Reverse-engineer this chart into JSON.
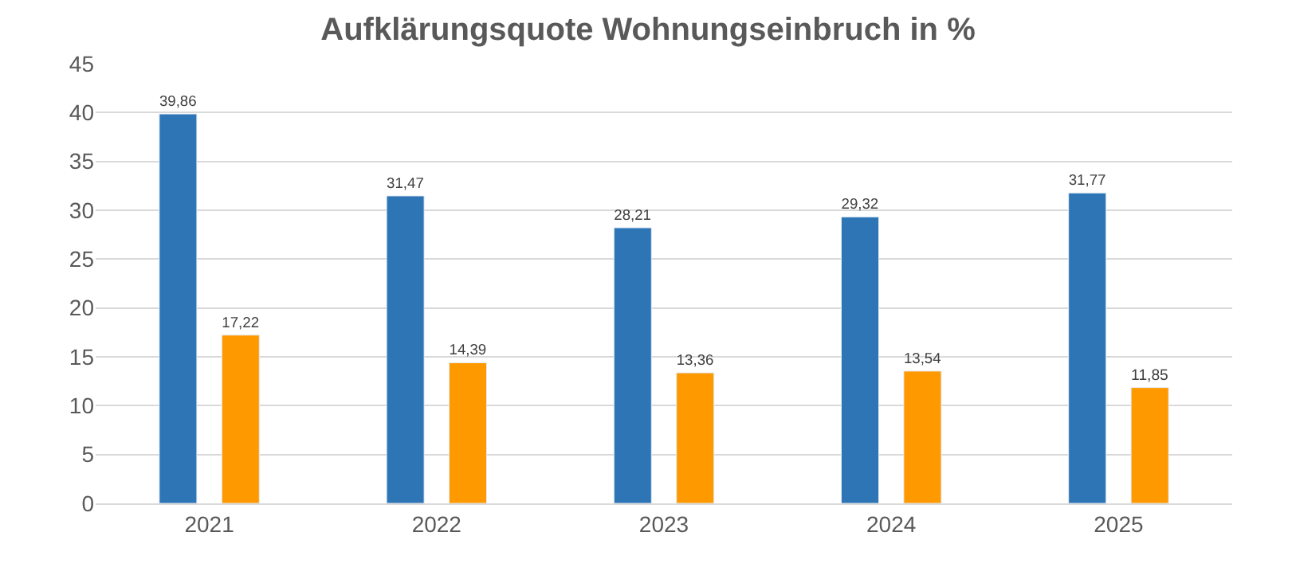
{
  "chart_data": {
    "type": "bar",
    "title": "Aufklärungsquote Wohnungseinbruch in %",
    "categories": [
      "2021",
      "2022",
      "2023",
      "2024",
      "2025"
    ],
    "series": [
      {
        "color": "#2e75b6",
        "values": [
          39.86,
          31.47,
          28.21,
          29.32,
          31.77
        ],
        "value_labels": [
          "39,86",
          "31,47",
          "28,21",
          "29,32",
          "31,77"
        ]
      },
      {
        "color": "#ff9900",
        "values": [
          17.22,
          14.39,
          13.36,
          13.54,
          11.85
        ],
        "value_labels": [
          "17,22",
          "14,39",
          "13,36",
          "13,54",
          "11,85"
        ]
      }
    ],
    "ylim": [
      0,
      45
    ],
    "yticks": [
      0,
      5,
      10,
      15,
      20,
      25,
      30,
      35,
      40,
      45
    ],
    "grid": "y"
  }
}
